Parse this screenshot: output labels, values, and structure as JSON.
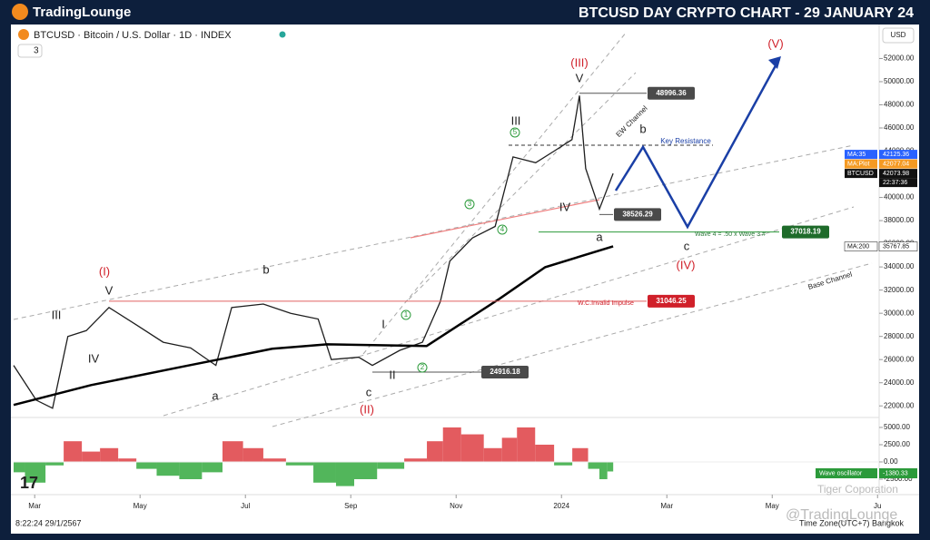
{
  "header": {
    "brand": "TradingLounge",
    "title": "BTCUSD DAY CRYPTO CHART - 29 JANUARY 24"
  },
  "toolbar": {
    "symbol": "BTCUSD · Bitcoin / U.S. Dollar · 1D · INDEX",
    "indicators": "3",
    "currency": "USD"
  },
  "chart_data": {
    "type": "line",
    "xlim": [
      0.6,
      17.03
    ],
    "xticks": [
      {
        "value": 1,
        "label": "Mar"
      },
      {
        "value": 3,
        "label": "May"
      },
      {
        "value": 5,
        "label": "Jul"
      },
      {
        "value": 7,
        "label": "Sep"
      },
      {
        "value": 9,
        "label": "Nov"
      },
      {
        "value": 11,
        "label": "2024"
      },
      {
        "value": 13,
        "label": "Mar"
      },
      {
        "value": 15,
        "label": "May"
      },
      {
        "value": 17,
        "label": "Ju"
      }
    ],
    "ylim": [
      21000,
      54700
    ],
    "yticks": [
      {
        "value": 22000,
        "label": "22000.00"
      },
      {
        "value": 24000,
        "label": "24000.00"
      },
      {
        "value": 26000,
        "label": "26000.00"
      },
      {
        "value": 28000,
        "label": "28000.00"
      },
      {
        "value": 30000,
        "label": "30000.00"
      },
      {
        "value": 32000,
        "label": "32000.00"
      },
      {
        "value": 34000,
        "label": "34000.00"
      },
      {
        "value": 36000,
        "label": "36000.00"
      },
      {
        "value": 38000,
        "label": "38000.00"
      },
      {
        "value": 40000,
        "label": "40000.00"
      },
      {
        "value": 42000,
        "label": "42000.00"
      },
      {
        "value": 44000,
        "label": "44000.00"
      },
      {
        "value": 46000,
        "label": "46000.00"
      },
      {
        "value": 48000,
        "label": "48000.00"
      },
      {
        "value": 50000,
        "label": "50000.00"
      },
      {
        "value": 52000,
        "label": "52000.00"
      }
    ],
    "series": [
      {
        "name": "BTCUSD",
        "color": "#1e1e1e",
        "x": [
          0.6,
          1.03,
          1.34,
          1.63,
          1.98,
          2.41,
          2.93,
          3.44,
          3.96,
          4.44,
          4.74,
          5.34,
          5.86,
          6.38,
          6.63,
          7.15,
          7.41,
          7.93,
          8.36,
          8.7,
          8.88,
          9.31,
          9.74,
          10.08,
          10.51,
          10.86,
          11.2,
          11.34,
          11.46,
          11.72,
          11.98
        ],
        "values": [
          25500,
          22500,
          21800,
          28000,
          28500,
          30500,
          29000,
          27500,
          27000,
          25500,
          30500,
          30800,
          30000,
          29500,
          26000,
          26200,
          25500,
          26800,
          27500,
          31000,
          34500,
          36500,
          37500,
          43500,
          43000,
          44000,
          45000,
          48800,
          42500,
          39000,
          42074
        ]
      },
      {
        "name": "MA:200",
        "color": "#000000",
        "x": [
          0.6,
          2.07,
          3.79,
          5.51,
          6.55,
          8.44,
          9.82,
          10.69,
          11.98
        ],
        "values": [
          22080,
          23800,
          25370,
          26930,
          27320,
          27170,
          31240,
          33980,
          35780
        ]
      }
    ],
    "levels": [
      48996.36,
      38526.29,
      24916.18,
      37018.19,
      31046.25
    ],
    "axis_tags": [
      {
        "label": "MA:35",
        "value": 42125.36
      },
      {
        "label": "MA:Plot",
        "value": 42077.04
      },
      {
        "label": "BTCUSD",
        "value": 42073.98,
        "countdown": "22:37:36"
      },
      {
        "label": "MA:200",
        "value": 35767.85
      }
    ],
    "annotations": [
      "(III)",
      "V",
      "III",
      "5",
      "b",
      "EW Channel",
      "Key Resistance",
      "IV",
      "a",
      "c",
      "(IV)",
      "(V)",
      "(I)",
      "V",
      "III",
      "IV",
      "b",
      "a",
      "c",
      "(II)",
      "I",
      "II",
      "1",
      "2",
      "3",
      "4",
      "Wave 4 = .50 x Wave 3 #",
      "W.C.Invalid Impulse",
      "Base Channel"
    ],
    "oscillator": {
      "name": "Wave oscillator",
      "ylim": [
        -4080,
        6180
      ],
      "yticks": [
        {
          "value": 5000,
          "label": "5000.00"
        },
        {
          "value": 2500,
          "label": "2500.00"
        },
        {
          "value": 0,
          "label": "0.00"
        },
        {
          "value": -2500,
          "label": "-2500.00"
        }
      ],
      "x": [
        0.6,
        1.03,
        1.38,
        1.72,
        2.07,
        2.41,
        2.76,
        3.1,
        3.53,
        3.96,
        4.39,
        4.74,
        5.17,
        5.51,
        6.03,
        6.55,
        6.89,
        7.24,
        7.76,
        8.27,
        8.62,
        8.88,
        9.31,
        9.74,
        10.0,
        10.31,
        10.69,
        11.03,
        11.38,
        11.63,
        11.81,
        11.93
      ],
      "values": [
        -1500,
        -3000,
        -500,
        3000,
        1500,
        2000,
        500,
        -1000,
        -2000,
        -2500,
        -1500,
        3000,
        2000,
        500,
        -500,
        -3000,
        -3500,
        -2500,
        -1000,
        500,
        3000,
        5000,
        4000,
        2000,
        3500,
        5000,
        2500,
        -500,
        2000,
        -1000,
        -2500,
        -1380.33
      ]
    }
  },
  "footer": {
    "clock": "8:22:24 29/1/2567",
    "timezone": "Time Zone(UTC+7) Bangkok",
    "watermark": "@TradingLounge",
    "corp": "Tiger Coporation"
  }
}
